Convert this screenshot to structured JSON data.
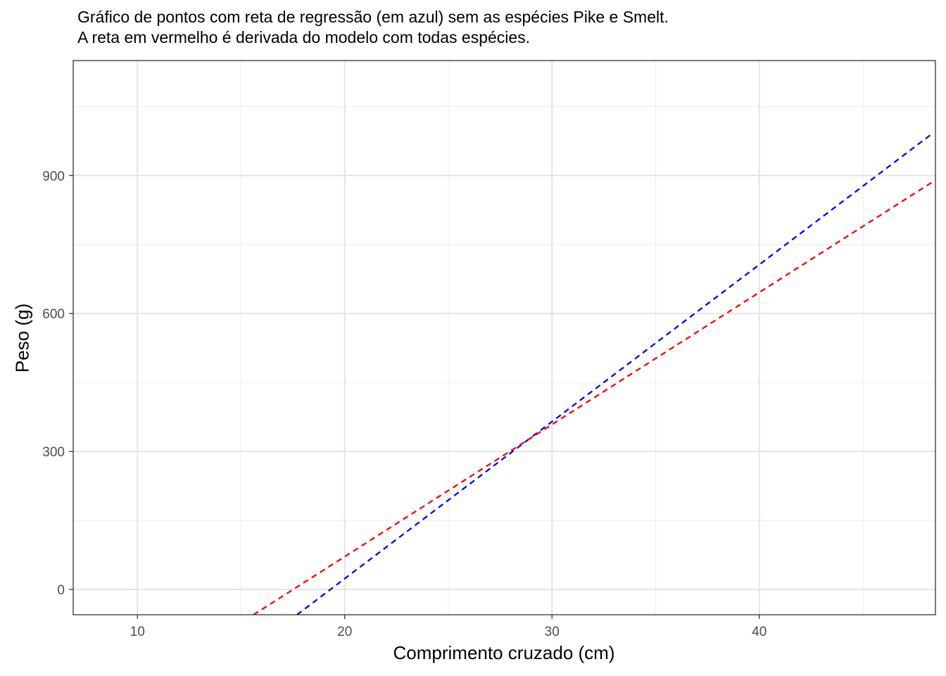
{
  "chart_data": {
    "type": "line",
    "title": "Gráfico de pontos com reta de regressão (em azul) sem as espécies Pike e Smelt.",
    "subtitle": "A reta em vermelho é derivada do modelo com todas espécies.",
    "xlabel": "Comprimento cruzado (cm)",
    "ylabel": "Peso (g)",
    "xlim": [
      6.9,
      48.5
    ],
    "ylim": [
      -55,
      1150
    ],
    "x_ticks": [
      10,
      20,
      30,
      40
    ],
    "y_ticks": [
      0,
      300,
      600,
      900
    ],
    "x_tick_labels": [
      "10",
      "20",
      "30",
      "40"
    ],
    "y_tick_labels": [
      "0",
      "300",
      "600",
      "900"
    ],
    "grid": true,
    "series": [
      {
        "color": "#0000ff",
        "linestyle": "dashed",
        "x": [
          17.7,
          48.4
        ],
        "y": [
          -55,
          993
        ]
      },
      {
        "color": "#ff0000",
        "linestyle": "dashed",
        "x": [
          15.6,
          48.5
        ],
        "y": [
          -55,
          890
        ]
      }
    ]
  }
}
